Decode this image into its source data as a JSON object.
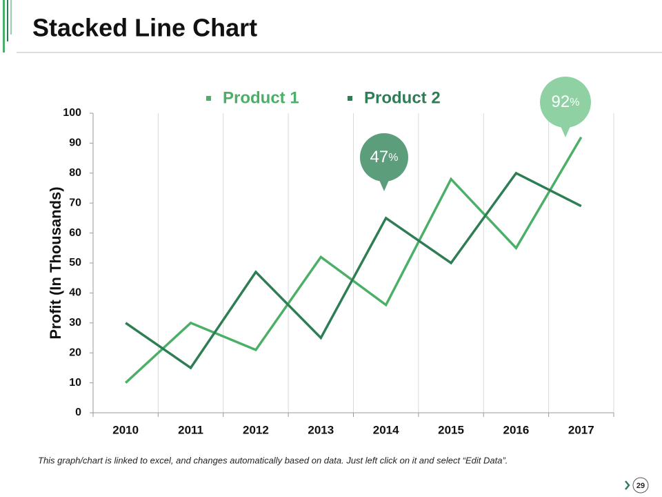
{
  "title": "Stacked Line Chart",
  "chart_data": {
    "type": "line",
    "ylabel": "Profit (In Thousands)",
    "categories": [
      "2010",
      "2011",
      "2012",
      "2013",
      "2014",
      "2015",
      "2016",
      "2017"
    ],
    "series": [
      {
        "name": "Product 1",
        "color": "#4caf68",
        "values": [
          10,
          30,
          21,
          52,
          36,
          78,
          55,
          92
        ]
      },
      {
        "name": "Product 2",
        "color": "#2e7d55",
        "values": [
          30,
          15,
          47,
          25,
          65,
          50,
          80,
          69
        ]
      }
    ],
    "ylim": [
      0,
      100
    ],
    "yticks": [
      0,
      10,
      20,
      30,
      40,
      50,
      60,
      70,
      80,
      90,
      100
    ],
    "grid": true,
    "legend": "top",
    "annotations": [
      {
        "text": "47",
        "suffix": "%",
        "color": "#5c9d7c"
      },
      {
        "text": "92",
        "suffix": "%",
        "color": "#8fd1a3"
      }
    ]
  },
  "footer": "This graph/chart is linked to excel, and changes automatically based on data. Just left click on it and select “Edit Data”.",
  "page_number": "29"
}
